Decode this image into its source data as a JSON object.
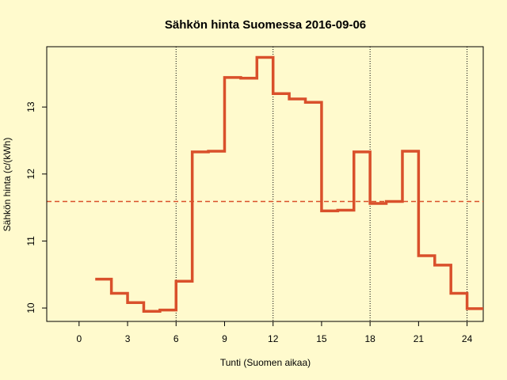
{
  "chart_data": {
    "type": "line",
    "title": "Sähkön hinta Suomessa 2016-09-06",
    "xlabel": "Tunti (Suomen aikaa)",
    "ylabel": "Sähkön hinta (c/(kWh)",
    "xlim": [
      -2,
      25
    ],
    "ylim": [
      9.8,
      13.9
    ],
    "x_ticks": [
      0,
      3,
      6,
      9,
      12,
      15,
      18,
      21,
      24
    ],
    "y_ticks": [
      10,
      11,
      12,
      13
    ],
    "vertical_dotted_lines_at": [
      6,
      12,
      18,
      24
    ],
    "mean_line": 11.59,
    "step_style": "steps",
    "series": [
      {
        "color": "#d9502b",
        "x": [
          1,
          2,
          3,
          4,
          5,
          6,
          7,
          8,
          9,
          10,
          11,
          12,
          13,
          14,
          15,
          16,
          17,
          18,
          19,
          20,
          21,
          22,
          23,
          24,
          25
        ],
        "values": [
          10.43,
          10.22,
          10.08,
          9.95,
          9.97,
          10.4,
          12.33,
          12.34,
          13.44,
          13.43,
          13.74,
          13.2,
          13.12,
          13.07,
          11.45,
          11.46,
          12.33,
          11.56,
          11.59,
          12.34,
          10.78,
          10.64,
          10.22,
          9.99,
          9.99
        ]
      }
    ]
  }
}
